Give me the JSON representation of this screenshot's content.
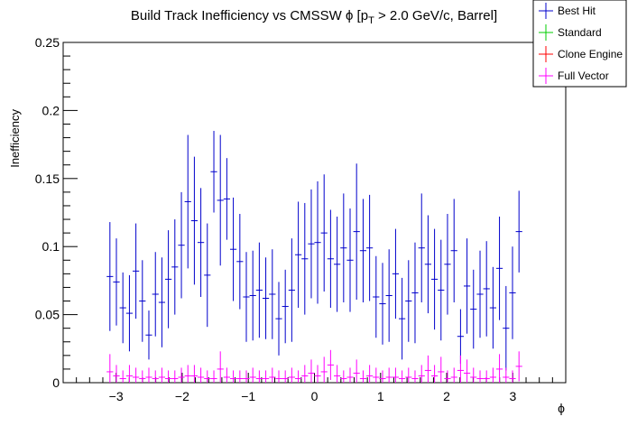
{
  "chart_data": {
    "type": "scatter",
    "title_main": "Build Track Inefficiency vs CMSSW ",
    "title_phi": "ϕ",
    "title_bracket": " [p",
    "title_sub": "T",
    "title_rest": " > 2.0 GeV/c, Barrel]",
    "xlabel": "ϕ",
    "ylabel": "Inefficiency",
    "xlim": [
      -3.8,
      3.8
    ],
    "ylim": [
      0,
      0.25
    ],
    "xticks": [
      -3,
      -2,
      -1,
      0,
      1,
      2,
      3
    ],
    "xtick_labels": [
      "−3",
      "−2",
      "−1",
      "0",
      "1",
      "2",
      "3"
    ],
    "yticks": [
      0,
      0.05,
      0.1,
      0.15,
      0.2,
      0.25
    ],
    "ytick_labels": [
      "0",
      "0.05",
      "0.1",
      "0.15",
      "0.2",
      "0.25"
    ],
    "bin_half_width": 0.0491,
    "legend": [
      {
        "name": "Best Hit",
        "color": "#0000cc"
      },
      {
        "name": "Standard",
        "color": "#00cc00"
      },
      {
        "name": "Clone Engine",
        "color": "#ff0000"
      },
      {
        "name": "Full Vector",
        "color": "#ff00ff"
      }
    ],
    "series": [
      {
        "name": "Best Hit",
        "color": "#0000cc",
        "x": [
          -3.093,
          -2.995,
          -2.897,
          -2.798,
          -2.7,
          -2.602,
          -2.504,
          -2.405,
          -2.307,
          -2.209,
          -2.111,
          -2.012,
          -1.914,
          -1.816,
          -1.718,
          -1.62,
          -1.521,
          -1.423,
          -1.325,
          -1.227,
          -1.128,
          -1.03,
          -0.932,
          -0.834,
          -0.736,
          -0.637,
          -0.539,
          -0.441,
          -0.343,
          -0.244,
          -0.146,
          -0.048,
          0.048,
          0.146,
          0.244,
          0.343,
          0.441,
          0.539,
          0.637,
          0.736,
          0.834,
          0.932,
          1.03,
          1.128,
          1.227,
          1.325,
          1.423,
          1.521,
          1.62,
          1.718,
          1.816,
          1.914,
          2.012,
          2.111,
          2.209,
          2.307,
          2.405,
          2.504,
          2.602,
          2.7,
          2.798,
          2.897,
          2.995,
          3.093
        ],
        "y": [
          0.078,
          0.074,
          0.055,
          0.051,
          0.082,
          0.06,
          0.035,
          0.065,
          0.059,
          0.076,
          0.085,
          0.101,
          0.133,
          0.119,
          0.103,
          0.079,
          0.155,
          0.134,
          0.135,
          0.098,
          0.089,
          0.063,
          0.064,
          0.068,
          0.062,
          0.065,
          0.047,
          0.056,
          0.068,
          0.094,
          0.091,
          0.102,
          0.103,
          0.11,
          0.091,
          0.087,
          0.099,
          0.09,
          0.111,
          0.097,
          0.099,
          0.063,
          0.058,
          0.064,
          0.08,
          0.047,
          0.06,
          0.066,
          0.099,
          0.087,
          0.076,
          0.068,
          0.087,
          0.097,
          0.034,
          0.071,
          0.054,
          0.065,
          0.069,
          0.055,
          0.084,
          0.04,
          0.066,
          0.111
        ],
        "err": [
          0.04,
          0.032,
          0.026,
          0.028,
          0.035,
          0.03,
          0.018,
          0.031,
          0.033,
          0.036,
          0.035,
          0.039,
          0.049,
          0.047,
          0.04,
          0.038,
          0.03,
          0.048,
          0.03,
          0.038,
          0.035,
          0.033,
          0.033,
          0.035,
          0.03,
          0.033,
          0.027,
          0.027,
          0.038,
          0.039,
          0.041,
          0.04,
          0.045,
          0.043,
          0.036,
          0.035,
          0.04,
          0.038,
          0.05,
          0.038,
          0.039,
          0.03,
          0.03,
          0.034,
          0.033,
          0.03,
          0.03,
          0.037,
          0.04,
          0.036,
          0.037,
          0.037,
          0.037,
          0.038,
          0.02,
          0.035,
          0.029,
          0.032,
          0.035,
          0.03,
          0.038,
          0.031,
          0.034,
          0.03
        ]
      },
      {
        "name": "Full Vector",
        "color": "#ff00ff",
        "x": [
          -3.093,
          -2.995,
          -2.897,
          -2.798,
          -2.7,
          -2.602,
          -2.504,
          -2.405,
          -2.307,
          -2.209,
          -2.111,
          -2.012,
          -1.914,
          -1.816,
          -1.718,
          -1.62,
          -1.521,
          -1.423,
          -1.325,
          -1.227,
          -1.128,
          -1.03,
          -0.932,
          -0.834,
          -0.736,
          -0.637,
          -0.539,
          -0.441,
          -0.343,
          -0.244,
          -0.146,
          -0.048,
          0.048,
          0.146,
          0.244,
          0.343,
          0.441,
          0.539,
          0.637,
          0.736,
          0.834,
          0.932,
          1.03,
          1.128,
          1.227,
          1.325,
          1.423,
          1.521,
          1.62,
          1.718,
          1.816,
          1.914,
          2.012,
          2.111,
          2.209,
          2.307,
          2.405,
          2.504,
          2.602,
          2.7,
          2.798,
          2.897,
          2.995,
          3.093
        ],
        "y": [
          0.008,
          0.005,
          0.003,
          0.005,
          0.004,
          0.003,
          0.004,
          0.003,
          0.004,
          0.003,
          0.003,
          0.004,
          0.005,
          0.005,
          0.004,
          0.003,
          0.003,
          0.01,
          0.004,
          0.003,
          0.003,
          0.003,
          0.004,
          0.003,
          0.003,
          0.004,
          0.003,
          0.003,
          0.004,
          0.003,
          0.005,
          0.007,
          0.005,
          0.008,
          0.013,
          0.005,
          0.003,
          0.004,
          0.007,
          0.003,
          0.005,
          0.004,
          0.003,
          0.004,
          0.004,
          0.003,
          0.004,
          0.003,
          0.005,
          0.009,
          0.005,
          0.008,
          0.003,
          0.004,
          0.009,
          0.007,
          0.004,
          0.003,
          0.003,
          0.004,
          0.01,
          0.004,
          0.003,
          0.012
        ],
        "err": [
          0.013,
          0.008,
          0.006,
          0.008,
          0.007,
          0.006,
          0.007,
          0.006,
          0.007,
          0.006,
          0.006,
          0.007,
          0.008,
          0.008,
          0.007,
          0.006,
          0.006,
          0.013,
          0.007,
          0.006,
          0.006,
          0.006,
          0.007,
          0.006,
          0.006,
          0.007,
          0.006,
          0.006,
          0.007,
          0.006,
          0.008,
          0.01,
          0.008,
          0.011,
          0.011,
          0.008,
          0.006,
          0.007,
          0.01,
          0.006,
          0.008,
          0.007,
          0.006,
          0.007,
          0.007,
          0.006,
          0.007,
          0.006,
          0.008,
          0.011,
          0.008,
          0.011,
          0.006,
          0.007,
          0.011,
          0.01,
          0.007,
          0.006,
          0.006,
          0.007,
          0.011,
          0.007,
          0.006,
          0.011
        ]
      }
    ]
  }
}
